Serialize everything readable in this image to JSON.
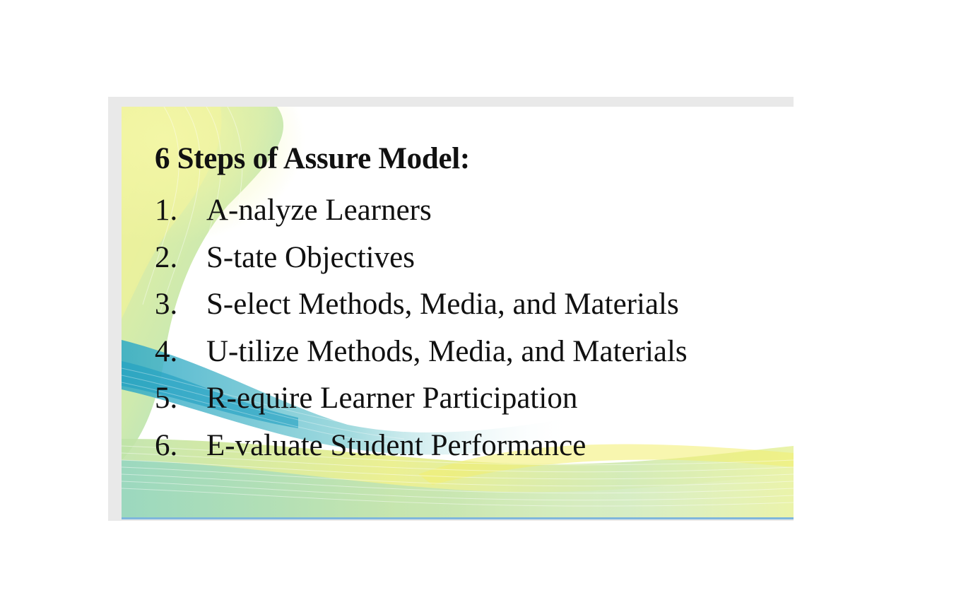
{
  "slide": {
    "title": "6 Steps of Assure Model:",
    "steps": [
      {
        "number": "1.",
        "text": "A-nalyze Learners"
      },
      {
        "number": "2.",
        "text": "S-tate Objectives"
      },
      {
        "number": "3.",
        "text": "S-elect Methods, Media, and Materials"
      },
      {
        "number": "4.",
        "text": "U-tilize Methods, Media, and Materials"
      },
      {
        "number": "5.",
        "text": "R-equire Learner Participation"
      },
      {
        "number": "6.",
        "text": "E-valuate Student Performance"
      }
    ],
    "colors": {
      "text": "#111111",
      "accent_yellow": "#e6ec6a",
      "accent_green": "#a7d78a",
      "accent_teal": "#3fb3c8",
      "accent_blue": "#7fb6dc"
    }
  }
}
